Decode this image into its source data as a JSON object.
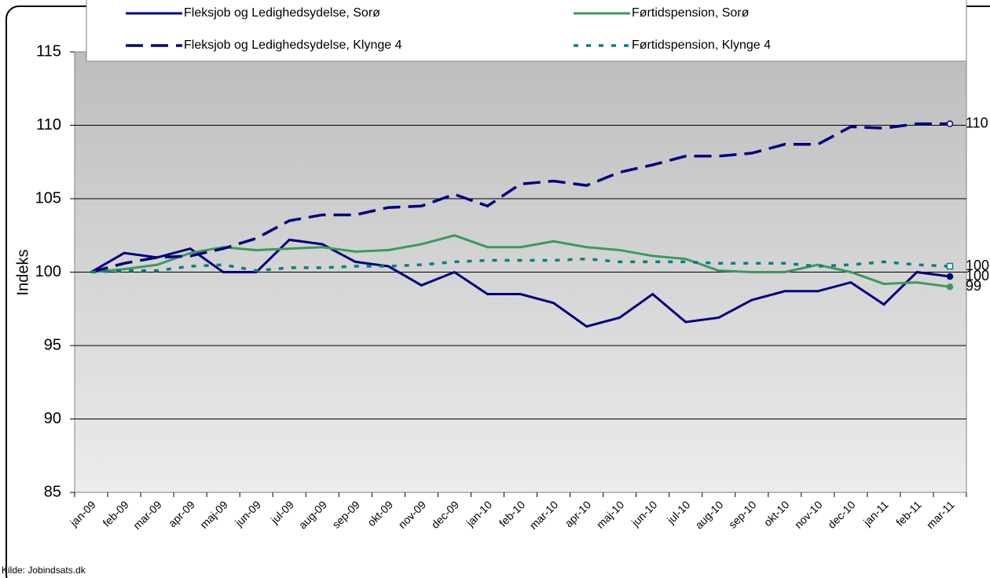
{
  "chart_data": {
    "type": "line",
    "y_label": "Indeks",
    "source": "Kilde: Jobindsats.dk",
    "categories": [
      "jan-09",
      "feb-09",
      "mar-09",
      "apr-09",
      "maj-09",
      "jun-09",
      "jul-09",
      "aug-09",
      "sep-09",
      "okt-09",
      "nov-09",
      "dec-09",
      "jan-10",
      "feb-10",
      "mar-10",
      "apr-10",
      "maj-10",
      "jun-10",
      "jul-10",
      "aug-10",
      "sep-10",
      "okt-10",
      "nov-10",
      "dec-10",
      "jan-11",
      "feb-11",
      "mar-11"
    ],
    "series": [
      {
        "name": "Fleksjob og Ledighedsydelse, Sorø",
        "color": "#000080",
        "style": "solid",
        "marker": "circle",
        "values": [
          100,
          101.3,
          101,
          101.6,
          100,
          100,
          102.2,
          101.9,
          100.7,
          100.4,
          99.1,
          100,
          98.5,
          98.5,
          97.9,
          96.3,
          96.9,
          98.5,
          96.6,
          96.9,
          98.1,
          98.7,
          98.7,
          99.3,
          97.8,
          100,
          99.7
        ],
        "value_labels": [
          null,
          null,
          null,
          null,
          null,
          null,
          null,
          null,
          null,
          null,
          null,
          null,
          null,
          null,
          null,
          null,
          null,
          null,
          null,
          null,
          null,
          null,
          null,
          null,
          null,
          null,
          "100"
        ]
      },
      {
        "name": "Førtidspension, Sorø",
        "color": "#3a9a5e",
        "style": "solid",
        "marker": "circle",
        "values": [
          100,
          100.2,
          100.5,
          101.3,
          101.7,
          101.5,
          101.6,
          101.7,
          101.4,
          101.5,
          101.9,
          102.5,
          101.7,
          101.7,
          102.1,
          101.7,
          101.5,
          101.1,
          100.9,
          100.1,
          100,
          100,
          100.5,
          100,
          99.2,
          99.3,
          99.0
        ],
        "value_labels": [
          null,
          null,
          null,
          null,
          null,
          null,
          null,
          null,
          null,
          null,
          null,
          null,
          null,
          null,
          null,
          null,
          null,
          null,
          null,
          null,
          null,
          null,
          null,
          null,
          null,
          null,
          "99"
        ]
      },
      {
        "name": "Fleksjob og Ledighedsydelse, Klynge 4",
        "color": "#000080",
        "style": "dashed",
        "marker": "open-circle",
        "values": [
          100,
          100.6,
          101,
          101.1,
          101.6,
          102.3,
          103.5,
          103.9,
          103.9,
          104.4,
          104.5,
          105.3,
          104.5,
          106,
          106.2,
          105.9,
          106.8,
          107.3,
          107.9,
          107.9,
          108.1,
          108.7,
          108.7,
          109.9,
          109.8,
          110.1,
          110.1
        ],
        "value_labels": [
          null,
          null,
          null,
          null,
          null,
          null,
          null,
          null,
          null,
          null,
          null,
          null,
          null,
          null,
          null,
          null,
          null,
          null,
          null,
          null,
          null,
          null,
          null,
          null,
          null,
          null,
          "110"
        ]
      },
      {
        "name": "Førtidspension, Klynge 4",
        "color": "#008080",
        "style": "dotted",
        "marker": "open-square",
        "values": [
          100,
          100.1,
          100.1,
          100.4,
          100.5,
          100.1,
          100.3,
          100.3,
          100.4,
          100.4,
          100.5,
          100.7,
          100.8,
          100.8,
          100.8,
          100.9,
          100.7,
          100.7,
          100.7,
          100.6,
          100.6,
          100.6,
          100.4,
          100.5,
          100.7,
          100.5,
          100.4
        ],
        "value_labels": [
          null,
          null,
          null,
          null,
          null,
          null,
          null,
          null,
          null,
          null,
          null,
          null,
          null,
          null,
          null,
          null,
          null,
          null,
          null,
          null,
          null,
          null,
          null,
          null,
          null,
          null,
          "100"
        ]
      }
    ],
    "ylim": [
      85,
      115
    ],
    "yticks": [
      85,
      90,
      95,
      100,
      105,
      110,
      115
    ],
    "grid": true
  }
}
